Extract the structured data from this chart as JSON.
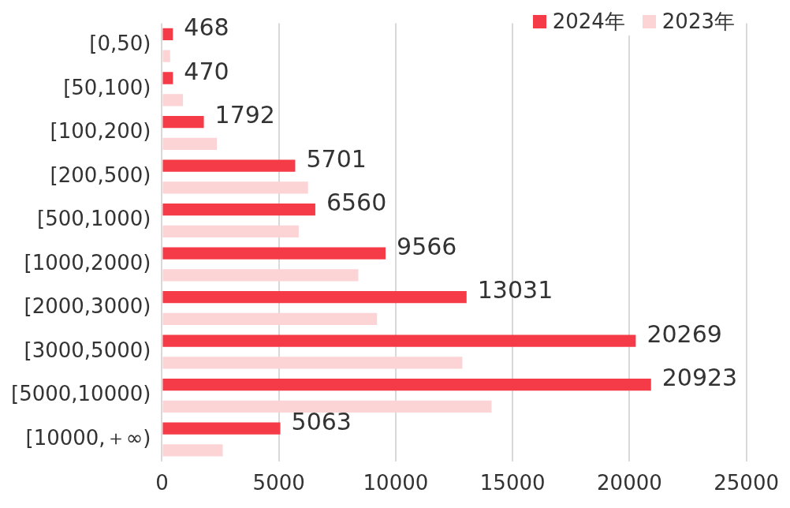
{
  "chart_data": {
    "type": "bar",
    "orientation": "horizontal",
    "categories": [
      "[0,50)",
      "[50,100)",
      "[100,200)",
      "[200,500)",
      "[500,1000)",
      "[1000,2000)",
      "[2000,3000)",
      "[3000,5000)",
      "[5000,10000)",
      "[10000,＋∞)"
    ],
    "series": [
      {
        "name": "2024年",
        "color": "#f43b47",
        "values": [
          468,
          470,
          1792,
          5701,
          6560,
          9566,
          13031,
          20269,
          20923,
          5063
        ],
        "value_labels": [
          "468",
          "470",
          "1792",
          "5701",
          "6560",
          "9566",
          "13031",
          "20269",
          "20923",
          "5063"
        ]
      },
      {
        "name": "2023年",
        "color": "#fdd4d6",
        "values": [
          350,
          900,
          2350,
          6250,
          5850,
          8400,
          9200,
          12850,
          14100,
          2600
        ]
      }
    ],
    "xlim": [
      0,
      25000
    ],
    "xticks": [
      0,
      5000,
      10000,
      15000,
      20000,
      25000
    ],
    "grid": "x",
    "legend": "top right"
  }
}
